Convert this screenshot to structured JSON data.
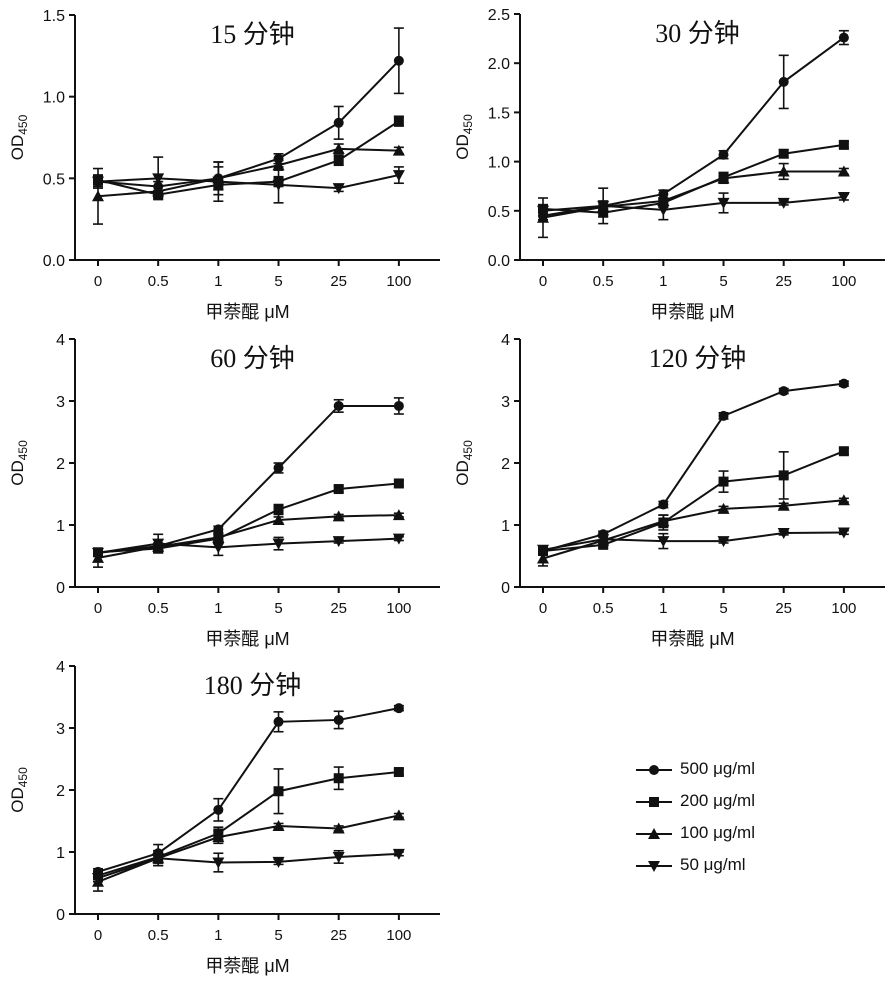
{
  "legend": [
    {
      "label": "500 μg/ml",
      "marker": "circle"
    },
    {
      "label": "200 μg/ml",
      "marker": "square"
    },
    {
      "label": "100 μg/ml",
      "marker": "triangle-up"
    },
    {
      "label": "50 μg/ml",
      "marker": "triangle-down"
    }
  ],
  "chart_data": [
    {
      "type": "line",
      "title": "15 分钟",
      "xlabel": "甲萘醌 μM",
      "ylabel": "OD450",
      "categories": [
        "0",
        "0.5",
        "1",
        "5",
        "25",
        "100"
      ],
      "ylim": [
        0,
        1.5
      ],
      "yticks": [
        "0.0",
        "0.5",
        "1.0",
        "1.5"
      ],
      "series": [
        {
          "name": "500 μg/ml",
          "marker": "circle",
          "values": [
            0.48,
            0.45,
            0.5,
            0.62,
            0.84,
            1.22
          ],
          "errors": [
            0.03,
            0.03,
            0.07,
            0.03,
            0.1,
            0.2
          ]
        },
        {
          "name": "200 μg/ml",
          "marker": "square",
          "values": [
            0.49,
            0.4,
            0.46,
            0.48,
            0.61,
            0.85
          ],
          "errors": [
            0.03,
            0.02,
            0.03,
            0.03,
            0.03,
            0.03
          ]
        },
        {
          "name": "100 μg/ml",
          "marker": "triangle-up",
          "values": [
            0.39,
            0.42,
            0.5,
            0.58,
            0.68,
            0.67
          ],
          "errors": [
            0.17,
            0.03,
            0.1,
            0.03,
            0.03,
            0.02
          ]
        },
        {
          "name": "50 μg/ml",
          "marker": "triangle-down",
          "values": [
            0.48,
            0.5,
            0.48,
            0.46,
            0.44,
            0.52
          ],
          "errors": [
            0.04,
            0.13,
            0.12,
            0.11,
            0.02,
            0.05
          ]
        }
      ]
    },
    {
      "type": "line",
      "title": "30 分钟",
      "xlabel": "甲萘醌 μM",
      "ylabel": "OD450",
      "categories": [
        "0",
        "0.5",
        "1",
        "5",
        "25",
        "100"
      ],
      "ylim": [
        0,
        2.5
      ],
      "yticks": [
        "0.0",
        "0.5",
        "1.0",
        "1.5",
        "2.0",
        "2.5"
      ],
      "series": [
        {
          "name": "500 μg/ml",
          "marker": "circle",
          "values": [
            0.45,
            0.55,
            0.67,
            1.07,
            1.81,
            2.26
          ],
          "errors": [
            0.04,
            0.05,
            0.04,
            0.04,
            0.27,
            0.07
          ]
        },
        {
          "name": "200 μg/ml",
          "marker": "square",
          "values": [
            0.52,
            0.48,
            0.58,
            0.84,
            1.08,
            1.17
          ],
          "errors": [
            0.04,
            0.04,
            0.04,
            0.05,
            0.04,
            0.03
          ]
        },
        {
          "name": "100 μg/ml",
          "marker": "triangle-up",
          "values": [
            0.43,
            0.54,
            0.6,
            0.83,
            0.9,
            0.9
          ],
          "errors": [
            0.2,
            0.04,
            0.03,
            0.05,
            0.08,
            0.03
          ]
        },
        {
          "name": "50 μg/ml",
          "marker": "triangle-down",
          "values": [
            0.5,
            0.55,
            0.51,
            0.58,
            0.58,
            0.64
          ],
          "errors": [
            0.05,
            0.18,
            0.1,
            0.1,
            0.02,
            0.03
          ]
        }
      ]
    },
    {
      "type": "line",
      "title": "60 分钟",
      "xlabel": "甲萘醌 μM",
      "ylabel": "OD450",
      "categories": [
        "0",
        "0.5",
        "1",
        "5",
        "25",
        "100"
      ],
      "ylim": [
        0,
        4
      ],
      "yticks": [
        "0",
        "1",
        "2",
        "3",
        "4"
      ],
      "series": [
        {
          "name": "500 μg/ml",
          "marker": "circle",
          "values": [
            0.55,
            0.66,
            0.93,
            1.92,
            2.92,
            2.92
          ],
          "errors": [
            0.05,
            0.05,
            0.05,
            0.08,
            0.1,
            0.13
          ]
        },
        {
          "name": "200 μg/ml",
          "marker": "square",
          "values": [
            0.56,
            0.62,
            0.78,
            1.25,
            1.58,
            1.67
          ],
          "errors": [
            0.05,
            0.05,
            0.08,
            0.08,
            0.05,
            0.05
          ]
        },
        {
          "name": "100 μg/ml",
          "marker": "triangle-up",
          "values": [
            0.47,
            0.65,
            0.8,
            1.08,
            1.14,
            1.16
          ],
          "errors": [
            0.15,
            0.05,
            0.06,
            0.05,
            0.03,
            0.03
          ]
        },
        {
          "name": "50 μg/ml",
          "marker": "triangle-down",
          "values": [
            0.55,
            0.7,
            0.64,
            0.7,
            0.74,
            0.78
          ],
          "errors": [
            0.05,
            0.15,
            0.13,
            0.1,
            0.03,
            0.03
          ]
        }
      ]
    },
    {
      "type": "line",
      "title": "120 分钟",
      "xlabel": "甲萘醌 μM",
      "ylabel": "OD450",
      "categories": [
        "0",
        "0.5",
        "1",
        "5",
        "25",
        "100"
      ],
      "ylim": [
        0,
        4
      ],
      "yticks": [
        "0",
        "1",
        "2",
        "3",
        "4"
      ],
      "series": [
        {
          "name": "500 μg/ml",
          "marker": "circle",
          "values": [
            0.58,
            0.85,
            1.33,
            2.76,
            3.16,
            3.28
          ],
          "errors": [
            0.05,
            0.05,
            0.05,
            0.05,
            0.04,
            0.04
          ]
        },
        {
          "name": "200 μg/ml",
          "marker": "square",
          "values": [
            0.58,
            0.68,
            1.04,
            1.7,
            1.8,
            2.19
          ],
          "errors": [
            0.05,
            0.05,
            0.12,
            0.17,
            0.38,
            0.05
          ]
        },
        {
          "name": "100 μg/ml",
          "marker": "triangle-up",
          "values": [
            0.46,
            0.75,
            1.06,
            1.26,
            1.31,
            1.4
          ],
          "errors": [
            0.12,
            0.08,
            0.1,
            0.04,
            0.04,
            0.03
          ]
        },
        {
          "name": "50 μg/ml",
          "marker": "triangle-down",
          "values": [
            0.6,
            0.77,
            0.74,
            0.74,
            0.87,
            0.88
          ],
          "errors": [
            0.06,
            0.1,
            0.12,
            0.03,
            0.03,
            0.03
          ]
        }
      ]
    },
    {
      "type": "line",
      "title": "180 分钟",
      "xlabel": "甲萘醌 μM",
      "ylabel": "OD450",
      "categories": [
        "0",
        "0.5",
        "1",
        "5",
        "25",
        "100"
      ],
      "ylim": [
        0,
        4
      ],
      "yticks": [
        "0",
        "1",
        "2",
        "3",
        "4"
      ],
      "series": [
        {
          "name": "500 μg/ml",
          "marker": "circle",
          "values": [
            0.68,
            0.98,
            1.68,
            3.1,
            3.13,
            3.32
          ],
          "errors": [
            0.05,
            0.14,
            0.18,
            0.16,
            0.14,
            0.04
          ]
        },
        {
          "name": "200 μg/ml",
          "marker": "square",
          "values": [
            0.62,
            0.92,
            1.3,
            1.98,
            2.19,
            2.29
          ],
          "errors": [
            0.05,
            0.1,
            0.1,
            0.36,
            0.18,
            0.05
          ]
        },
        {
          "name": "100 μg/ml",
          "marker": "triangle-up",
          "values": [
            0.52,
            0.9,
            1.24,
            1.42,
            1.38,
            1.59
          ],
          "errors": [
            0.15,
            0.12,
            0.1,
            0.04,
            0.04,
            0.03
          ]
        },
        {
          "name": "50 μg/ml",
          "marker": "triangle-down",
          "values": [
            0.58,
            0.9,
            0.83,
            0.84,
            0.92,
            0.97
          ],
          "errors": [
            0.06,
            0.12,
            0.15,
            0.04,
            0.1,
            0.03
          ]
        }
      ]
    }
  ]
}
